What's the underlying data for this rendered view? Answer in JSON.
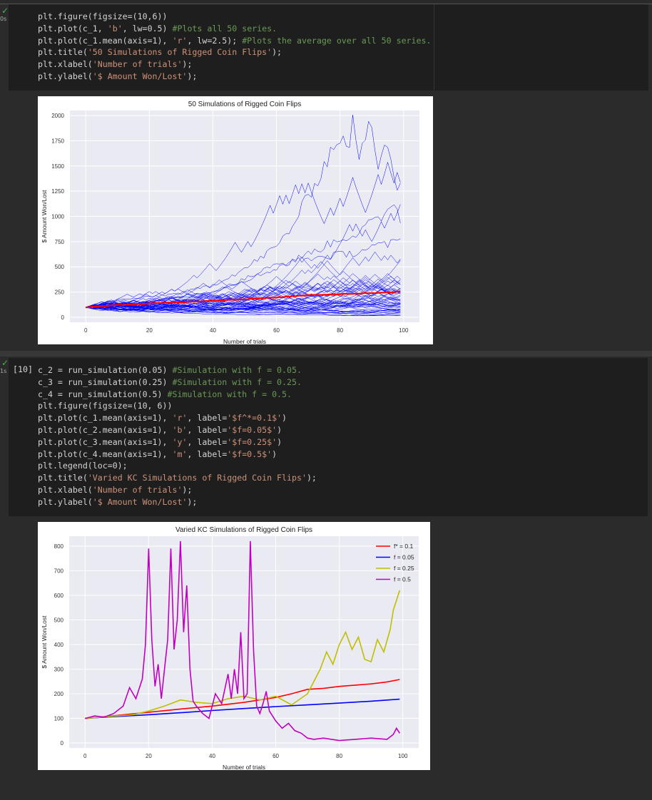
{
  "cell1": {
    "status_time": "0s",
    "code_lines": [
      [
        [
          "plt.figure(figsize=(10,6))",
          ""
        ]
      ],
      [
        [
          "plt.plot(c_1, ",
          ""
        ],
        [
          "'b'",
          "c-str"
        ],
        [
          ", lw=0.5) ",
          ""
        ],
        [
          "#Plots all 50 series.",
          "c-com"
        ]
      ],
      [
        [
          "plt.plot(c_1.mean(axis=1), ",
          ""
        ],
        [
          "'r'",
          "c-str"
        ],
        [
          ", lw=2.5); ",
          ""
        ],
        [
          "#Plots the average over all 50 series.",
          "c-com"
        ]
      ],
      [
        [
          "plt.title(",
          ""
        ],
        [
          "'50 Simulations of Rigged Coin Flips'",
          "c-str"
        ],
        [
          ");",
          ""
        ]
      ],
      [
        [
          "plt.xlabel(",
          ""
        ],
        [
          "'Number of trials'",
          "c-str"
        ],
        [
          ");",
          ""
        ]
      ],
      [
        [
          "plt.ylabel(",
          ""
        ],
        [
          "'$ Amount Won/Lost'",
          "c-str"
        ],
        [
          ");",
          ""
        ]
      ]
    ]
  },
  "cell2": {
    "exec_count": "[10]",
    "status_time": "1s",
    "code_lines": [
      [
        [
          "c_2 = run_simulation(0.05) ",
          ""
        ],
        [
          "#Simulation with f = 0.05.",
          "c-com"
        ]
      ],
      [
        [
          "c_3 = run_simulation(0.25) ",
          ""
        ],
        [
          "#Simulation with f = 0.25.",
          "c-com"
        ]
      ],
      [
        [
          "c_4 = run_simulation(0.5) ",
          ""
        ],
        [
          "#Simulation with f = 0.5.",
          "c-com"
        ]
      ],
      [
        [
          "plt.figure(figsize=(10, 6))",
          ""
        ]
      ],
      [
        [
          "plt.plot(c_1.mean(axis=1), ",
          ""
        ],
        [
          "'r'",
          "c-str"
        ],
        [
          ", label=",
          ""
        ],
        [
          "'$f^*=0.1$'",
          "c-str"
        ],
        [
          ")",
          ""
        ]
      ],
      [
        [
          "plt.plot(c_2.mean(axis=1), ",
          ""
        ],
        [
          "'b'",
          "c-str"
        ],
        [
          ", label=",
          ""
        ],
        [
          "'$f=0.05$'",
          "c-str"
        ],
        [
          ")",
          ""
        ]
      ],
      [
        [
          "plt.plot(c_3.mean(axis=1), ",
          ""
        ],
        [
          "'y'",
          "c-str"
        ],
        [
          ", label=",
          ""
        ],
        [
          "'$f=0.25$'",
          "c-str"
        ],
        [
          ")",
          ""
        ]
      ],
      [
        [
          "plt.plot(c_4.mean(axis=1), ",
          ""
        ],
        [
          "'m'",
          "c-str"
        ],
        [
          ", label=",
          ""
        ],
        [
          "'$f=0.5$'",
          "c-str"
        ],
        [
          ")",
          ""
        ]
      ],
      [
        [
          "plt.legend(loc=0);",
          ""
        ]
      ],
      [
        [
          "plt.title(",
          ""
        ],
        [
          "'Varied KC Simulations of Rigged Coin Flips'",
          "c-str"
        ],
        [
          ");",
          ""
        ]
      ],
      [
        [
          "plt.xlabel(",
          ""
        ],
        [
          "'Number of trials'",
          "c-str"
        ],
        [
          ");",
          ""
        ]
      ],
      [
        [
          "plt.ylabel(",
          ""
        ],
        [
          "'$ Amount Won/Lost'",
          "c-str"
        ],
        [
          ");",
          ""
        ]
      ]
    ]
  },
  "chart_data": [
    {
      "type": "line",
      "title": "50 Simulations of Rigged Coin Flips",
      "xlabel": "Number of trials",
      "ylabel": "$ Amount Won/Lost",
      "xlim": [
        -5,
        105
      ],
      "ylim": [
        -50,
        2050
      ],
      "xticks": [
        0,
        20,
        40,
        60,
        80,
        100
      ],
      "yticks": [
        0,
        250,
        500,
        750,
        1000,
        1250,
        1500,
        1750,
        2000
      ],
      "grid": true,
      "n_series": 50,
      "series_color": "#0000ff",
      "mean_color": "#ff0000",
      "highlight_series": [
        {
          "x": [
            0,
            10,
            20,
            30,
            40,
            50,
            60,
            65,
            70,
            75,
            78,
            80,
            82,
            84,
            86,
            88,
            90,
            92,
            94,
            96,
            98,
            99
          ],
          "y": [
            100,
            170,
            200,
            240,
            320,
            480,
            700,
            900,
            1200,
            1500,
            1700,
            1800,
            1650,
            1900,
            1600,
            1750,
            1950,
            1500,
            1800,
            1650,
            1250,
            1360
          ]
        },
        {
          "x": [
            0,
            20,
            40,
            55,
            65,
            75,
            80,
            85,
            88,
            91,
            94,
            96,
            98,
            99
          ],
          "y": [
            100,
            160,
            260,
            420,
            560,
            700,
            780,
            820,
            900,
            950,
            1000,
            1150,
            1100,
            920
          ]
        },
        {
          "x": [
            0,
            20,
            40,
            50,
            60,
            70,
            80,
            85,
            90,
            95,
            99
          ],
          "y": [
            100,
            150,
            250,
            380,
            520,
            580,
            620,
            640,
            700,
            720,
            760
          ]
        }
      ],
      "mean_series": {
        "x": [
          0,
          10,
          20,
          30,
          40,
          50,
          60,
          70,
          80,
          90,
          99
        ],
        "y": [
          100,
          120,
          135,
          150,
          165,
          180,
          195,
          220,
          230,
          240,
          255
        ]
      }
    },
    {
      "type": "line",
      "title": "Varied KC Simulations of Rigged Coin Flips",
      "xlabel": "Number of trials",
      "ylabel": "$ Amount Won/Lost",
      "xlim": [
        -5,
        105
      ],
      "ylim": [
        -20,
        840
      ],
      "xticks": [
        0,
        20,
        40,
        60,
        80,
        100
      ],
      "yticks": [
        0,
        100,
        200,
        300,
        400,
        500,
        600,
        700,
        800
      ],
      "grid": true,
      "legend_loc": "top-right",
      "series": [
        {
          "name": "f* = 0.1",
          "color": "#ff0000",
          "x": [
            0,
            10,
            20,
            30,
            40,
            50,
            60,
            65,
            70,
            75,
            80,
            85,
            90,
            95,
            99
          ],
          "y": [
            100,
            112,
            125,
            138,
            150,
            165,
            185,
            200,
            218,
            222,
            230,
            235,
            240,
            248,
            258
          ]
        },
        {
          "name": "f = 0.05",
          "color": "#0000ff",
          "x": [
            0,
            10,
            20,
            30,
            40,
            50,
            60,
            70,
            80,
            90,
            99
          ],
          "y": [
            100,
            108,
            115,
            123,
            132,
            140,
            148,
            155,
            162,
            170,
            178
          ]
        },
        {
          "name": "f = 0.25",
          "color": "#bfbf00",
          "x": [
            0,
            5,
            10,
            15,
            20,
            25,
            30,
            35,
            40,
            45,
            50,
            55,
            60,
            65,
            70,
            74,
            76,
            78,
            80,
            82,
            84,
            86,
            88,
            90,
            92,
            94,
            96,
            97,
            99
          ],
          "y": [
            100,
            105,
            110,
            115,
            130,
            150,
            175,
            165,
            160,
            180,
            190,
            175,
            190,
            155,
            200,
            300,
            370,
            320,
            400,
            450,
            380,
            430,
            340,
            330,
            420,
            370,
            460,
            540,
            620
          ]
        },
        {
          "name": "f = 0.5",
          "color": "#c000c0",
          "x": [
            0,
            3,
            6,
            9,
            12,
            14,
            16,
            18,
            19,
            20,
            21,
            22,
            23,
            24,
            25,
            26,
            27,
            28,
            29,
            30,
            31,
            32,
            33,
            34,
            35,
            37,
            39,
            41,
            43,
            45,
            46,
            47,
            48,
            49,
            50,
            51,
            52,
            53,
            54,
            55,
            56,
            57,
            58,
            60,
            62,
            64,
            66,
            68,
            70,
            72,
            75,
            80,
            85,
            90,
            95,
            97,
            98,
            99
          ],
          "y": [
            100,
            110,
            105,
            120,
            150,
            225,
            180,
            260,
            400,
            790,
            420,
            230,
            320,
            180,
            300,
            420,
            790,
            380,
            500,
            820,
            450,
            640,
            300,
            170,
            150,
            120,
            100,
            200,
            160,
            280,
            180,
            300,
            200,
            450,
            180,
            200,
            820,
            380,
            150,
            120,
            160,
            210,
            130,
            90,
            60,
            80,
            50,
            40,
            20,
            15,
            20,
            10,
            15,
            20,
            15,
            35,
            60,
            40
          ]
        }
      ]
    }
  ]
}
